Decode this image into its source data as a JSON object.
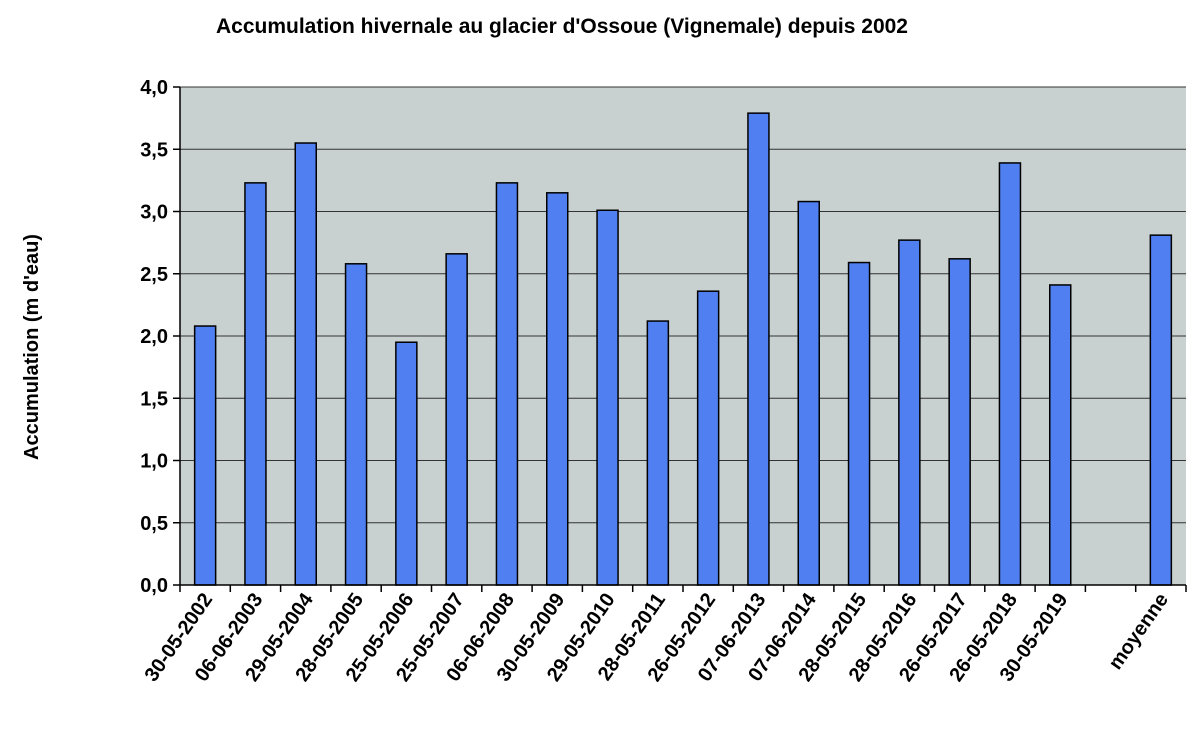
{
  "chart_data": {
    "type": "bar",
    "title": "Accumulation hivernale au glacier d'Ossoue (Vignemale) depuis 2002",
    "xlabel": "",
    "ylabel": "Accumulation (m d'eau)",
    "ylim": [
      0,
      4
    ],
    "yticks": [
      "0,0",
      "0,5",
      "1,0",
      "1,5",
      "2,0",
      "2,5",
      "3,0",
      "3,5",
      "4,0"
    ],
    "grid": true,
    "legend": "none",
    "categories": [
      "30-05-2002",
      "06-06-2003",
      "29-05-2004",
      "28-05-2005",
      "25-05-2006",
      "25-05-2007",
      "06-06-2008",
      "30-05-2009",
      "29-05-2010",
      "28-05-2011",
      "26-05-2012",
      "07-06-2013",
      "07-06-2014",
      "28-05-2015",
      "28-05-2016",
      "26-05-2017",
      "26-05-2018",
      "30-05-2019",
      "",
      "moyenne"
    ],
    "values": [
      2.08,
      3.23,
      3.55,
      2.58,
      1.95,
      2.66,
      3.23,
      3.15,
      3.01,
      2.12,
      2.36,
      3.79,
      3.08,
      2.59,
      2.77,
      2.62,
      3.39,
      2.41,
      null,
      2.81
    ],
    "colors": {
      "bar": "#4f7ff0",
      "plot_bg": "#c8d0d0",
      "grid": "#333333"
    }
  }
}
